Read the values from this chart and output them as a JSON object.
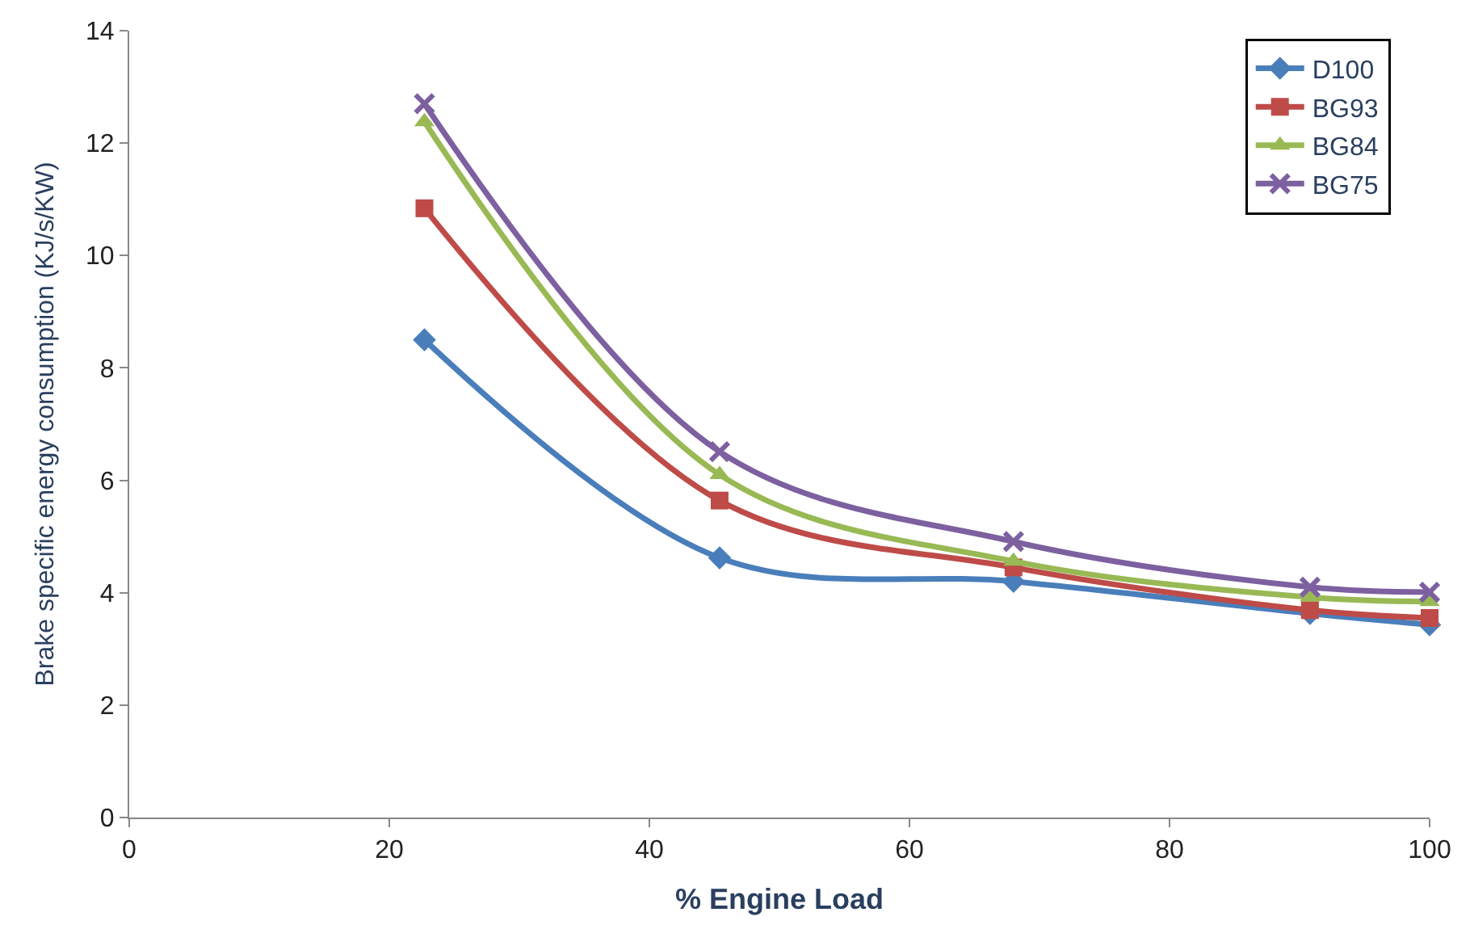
{
  "chart_data": {
    "type": "line",
    "xlabel": "% Engine Load",
    "ylabel": "Brake specific energy consumption (KJ/s/KW)",
    "x": [
      22.7,
      45.4,
      68,
      90.8,
      100
    ],
    "xlim": [
      0,
      100
    ],
    "xticks": [
      0,
      20,
      40,
      60,
      80,
      100
    ],
    "ylim": [
      0,
      14
    ],
    "yticks": [
      0,
      2,
      4,
      6,
      8,
      10,
      12,
      14
    ],
    "legend": "top right",
    "series": [
      {
        "name": "D100",
        "color": "#4a7ebb",
        "marker": "diamond",
        "values": [
          8.5,
          4.62,
          4.2,
          3.63,
          3.43
        ]
      },
      {
        "name": "BG93",
        "color": "#be4b48",
        "marker": "square",
        "values": [
          10.84,
          5.64,
          4.45,
          3.69,
          3.55
        ]
      },
      {
        "name": "BG84",
        "color": "#98b954",
        "marker": "triangle",
        "values": [
          12.38,
          6.1,
          4.56,
          3.92,
          3.84
        ]
      },
      {
        "name": "BG75",
        "color": "#7d60a0",
        "marker": "cross",
        "values": [
          12.7,
          6.51,
          4.91,
          4.1,
          4.01
        ]
      }
    ]
  }
}
